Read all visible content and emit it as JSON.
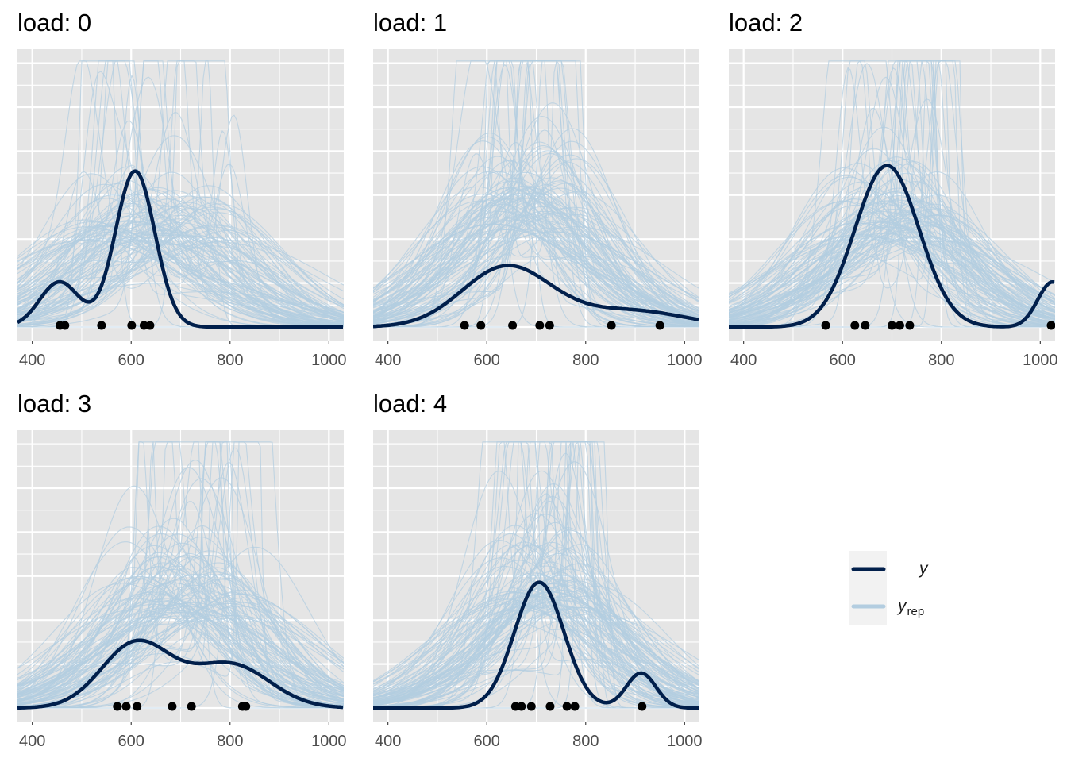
{
  "chart_data": {
    "type": "area",
    "title": "",
    "xlabel": "",
    "ylabel": "",
    "xlim": [
      370,
      1030
    ],
    "x_ticks": [
      400,
      600,
      800,
      1000
    ],
    "facet_label_prefix": "load:",
    "legend": {
      "placement": "right",
      "entries": [
        {
          "key": "y",
          "label": "y",
          "subscript": "",
          "color": "#011f4b"
        },
        {
          "key": "yrep",
          "label": "y",
          "subscript": "rep",
          "color": "#b3cde0"
        }
      ]
    },
    "colors": {
      "panel_bg": "#e5e5e5",
      "grid": "#ffffff",
      "y_line": "#011f4b",
      "yrep_line": "#b3cde0",
      "points": "#000000",
      "tick_text": "#4d4d4d"
    },
    "n_yrep_draws": 100,
    "panels": [
      {
        "label": "0",
        "ymax": 0.0066,
        "observed_points": [
          456,
          466,
          540,
          601,
          626,
          638
        ],
        "y_density": [
          [
            -0.18,
            0.0,
            0.055
          ],
          [
            0.11,
            455,
            40
          ],
          [
            0.38,
            608,
            40
          ]
        ],
        "yrep_center_range": [
          500,
          820
        ],
        "yrep_sd_range": [
          80,
          200
        ]
      },
      {
        "label": "1",
        "ymax": 0.006,
        "observed_points": [
          555,
          588,
          652,
          707,
          727,
          852,
          950
        ],
        "y_density": [
          [
            0.3,
            640,
            90
          ],
          [
            0.1,
            890,
            110
          ]
        ],
        "yrep_center_range": [
          560,
          790
        ],
        "yrep_sd_range": [
          75,
          190
        ]
      },
      {
        "label": "2",
        "ymax": 0.0064,
        "observed_points": [
          566,
          625,
          646,
          700,
          716,
          736,
          1022
        ],
        "y_density": [
          [
            0.62,
            690,
            65
          ],
          [
            0.08,
            1025,
            30
          ]
        ],
        "yrep_center_range": [
          600,
          820
        ],
        "yrep_sd_range": [
          80,
          200
        ]
      },
      {
        "label": "3",
        "ymax": 0.0062,
        "observed_points": [
          572,
          590,
          612,
          683,
          722,
          825,
          832
        ],
        "y_density": [
          [
            0.26,
            610,
            70
          ],
          [
            0.2,
            800,
            80
          ]
        ],
        "yrep_center_range": [
          580,
          860
        ],
        "yrep_sd_range": [
          70,
          190
        ]
      },
      {
        "label": "4",
        "ymax": 0.0062,
        "observed_points": [
          658,
          670,
          690,
          728,
          762,
          778,
          914
        ],
        "y_density": [
          [
            0.36,
            706,
            50
          ],
          [
            0.06,
            912,
            30
          ]
        ],
        "yrep_center_range": [
          620,
          820
        ],
        "yrep_sd_range": [
          70,
          190
        ]
      }
    ]
  }
}
